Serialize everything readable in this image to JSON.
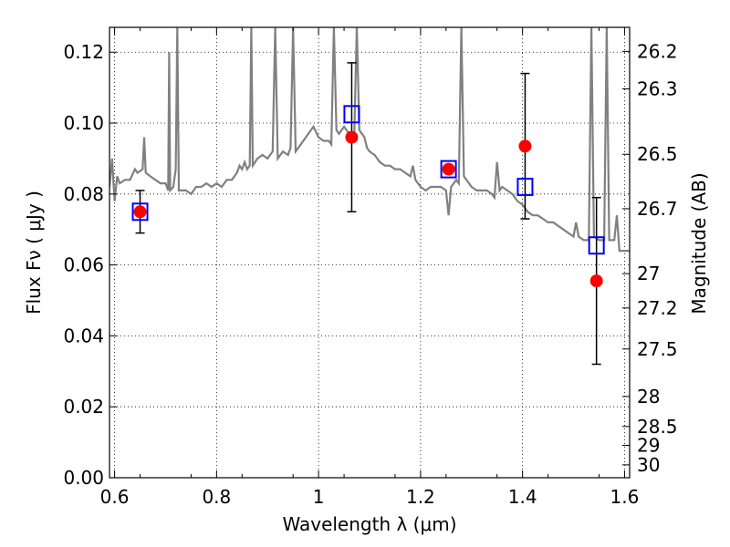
{
  "chart_data": {
    "type": "scatter",
    "xlabel": "Wavelength  λ (μm)",
    "ylabel": "Flux  Fν  ( μJy )",
    "ylabel_right": "Magnitude (AB)",
    "xlim": [
      0.59,
      1.61
    ],
    "ylim": [
      0.0,
      0.127
    ],
    "grid": "dotted",
    "x_ticks": [
      0.6,
      0.8,
      1.0,
      1.2,
      1.4,
      1.6
    ],
    "x_tick_labels": [
      "0.6",
      "0.8",
      "1",
      "1.2",
      "1.4",
      "1.6"
    ],
    "y_ticks": [
      0.0,
      0.02,
      0.04,
      0.06,
      0.08,
      0.1,
      0.12
    ],
    "y_tick_labels": [
      "0.00",
      "0.02",
      "0.04",
      "0.06",
      "0.08",
      "0.10",
      "0.12"
    ],
    "mag_ticks": [
      "26.2",
      "26.3",
      "26.5",
      "26.7",
      "27",
      "27.2",
      "27.5",
      "28",
      "28.5",
      "29",
      "30"
    ],
    "series": [
      {
        "kind": "line",
        "color": "#808080",
        "points": [
          [
            0.59,
            0.082
          ],
          [
            0.595,
            0.09
          ],
          [
            0.6,
            0.078
          ],
          [
            0.605,
            0.085
          ],
          [
            0.61,
            0.083
          ],
          [
            0.62,
            0.084
          ],
          [
            0.63,
            0.084
          ],
          [
            0.64,
            0.087
          ],
          [
            0.645,
            0.086
          ],
          [
            0.655,
            0.087
          ],
          [
            0.658,
            0.096
          ],
          [
            0.661,
            0.086
          ],
          [
            0.67,
            0.085
          ],
          [
            0.68,
            0.084
          ],
          [
            0.69,
            0.083
          ],
          [
            0.7,
            0.083
          ],
          [
            0.705,
            0.081
          ],
          [
            0.707,
            0.12
          ],
          [
            0.709,
            0.081
          ],
          [
            0.715,
            0.082
          ],
          [
            0.72,
            0.087
          ],
          [
            0.723,
            0.127
          ],
          [
            0.726,
            0.081
          ],
          [
            0.74,
            0.081
          ],
          [
            0.75,
            0.08
          ],
          [
            0.76,
            0.082
          ],
          [
            0.77,
            0.082
          ],
          [
            0.78,
            0.083
          ],
          [
            0.79,
            0.082
          ],
          [
            0.8,
            0.083
          ],
          [
            0.81,
            0.082
          ],
          [
            0.82,
            0.084
          ],
          [
            0.83,
            0.084
          ],
          [
            0.84,
            0.086
          ],
          [
            0.845,
            0.088
          ],
          [
            0.85,
            0.087
          ],
          [
            0.855,
            0.089
          ],
          [
            0.86,
            0.087
          ],
          [
            0.865,
            0.088
          ],
          [
            0.868,
            0.127
          ],
          [
            0.871,
            0.088
          ],
          [
            0.88,
            0.09
          ],
          [
            0.89,
            0.091
          ],
          [
            0.9,
            0.09
          ],
          [
            0.91,
            0.092
          ],
          [
            0.915,
            0.127
          ],
          [
            0.92,
            0.09
          ],
          [
            0.93,
            0.092
          ],
          [
            0.94,
            0.091
          ],
          [
            0.945,
            0.093
          ],
          [
            0.95,
            0.127
          ],
          [
            0.955,
            0.092
          ],
          [
            0.96,
            0.093
          ],
          [
            0.97,
            0.095
          ],
          [
            0.98,
            0.097
          ],
          [
            0.99,
            0.099
          ],
          [
            1.0,
            0.096
          ],
          [
            1.01,
            0.095
          ],
          [
            1.02,
            0.095
          ],
          [
            1.025,
            0.094
          ],
          [
            1.03,
            0.127
          ],
          [
            1.035,
            0.098
          ],
          [
            1.04,
            0.097
          ],
          [
            1.05,
            0.099
          ],
          [
            1.06,
            0.097
          ],
          [
            1.07,
            0.096
          ],
          [
            1.075,
            0.127
          ],
          [
            1.08,
            0.098
          ],
          [
            1.09,
            0.096
          ],
          [
            1.095,
            0.093
          ],
          [
            1.1,
            0.092
          ],
          [
            1.11,
            0.091
          ],
          [
            1.12,
            0.089
          ],
          [
            1.13,
            0.088
          ],
          [
            1.14,
            0.088
          ],
          [
            1.15,
            0.087
          ],
          [
            1.16,
            0.087
          ],
          [
            1.17,
            0.086
          ],
          [
            1.18,
            0.085
          ],
          [
            1.185,
            0.088
          ],
          [
            1.19,
            0.084
          ],
          [
            1.2,
            0.082
          ],
          [
            1.21,
            0.081
          ],
          [
            1.22,
            0.082
          ],
          [
            1.23,
            0.082
          ],
          [
            1.24,
            0.082
          ],
          [
            1.25,
            0.081
          ],
          [
            1.255,
            0.074
          ],
          [
            1.26,
            0.082
          ],
          [
            1.27,
            0.084
          ],
          [
            1.275,
            0.083
          ],
          [
            1.28,
            0.127
          ],
          [
            1.285,
            0.085
          ],
          [
            1.29,
            0.084
          ],
          [
            1.3,
            0.082
          ],
          [
            1.31,
            0.081
          ],
          [
            1.32,
            0.081
          ],
          [
            1.33,
            0.081
          ],
          [
            1.34,
            0.08
          ],
          [
            1.345,
            0.079
          ],
          [
            1.35,
            0.089
          ],
          [
            1.355,
            0.081
          ],
          [
            1.36,
            0.082
          ],
          [
            1.37,
            0.081
          ],
          [
            1.38,
            0.08
          ],
          [
            1.39,
            0.078
          ],
          [
            1.4,
            0.077
          ],
          [
            1.41,
            0.075
          ],
          [
            1.42,
            0.074
          ],
          [
            1.43,
            0.074
          ],
          [
            1.44,
            0.073
          ],
          [
            1.45,
            0.072
          ],
          [
            1.46,
            0.072
          ],
          [
            1.47,
            0.071
          ],
          [
            1.48,
            0.07
          ],
          [
            1.49,
            0.069
          ],
          [
            1.5,
            0.068
          ],
          [
            1.505,
            0.072
          ],
          [
            1.51,
            0.068
          ],
          [
            1.52,
            0.067
          ],
          [
            1.53,
            0.067
          ],
          [
            1.535,
            0.127
          ],
          [
            1.54,
            0.068
          ],
          [
            1.55,
            0.067
          ],
          [
            1.56,
            0.067
          ],
          [
            1.565,
            0.127
          ],
          [
            1.57,
            0.067
          ],
          [
            1.58,
            0.067
          ],
          [
            1.585,
            0.074
          ],
          [
            1.59,
            0.064
          ],
          [
            1.6,
            0.064
          ],
          [
            1.61,
            0.064
          ]
        ]
      },
      {
        "kind": "points",
        "marker": "circle",
        "color": "#ff0000",
        "x": [
          0.65,
          1.065,
          1.255,
          1.405,
          1.545
        ],
        "y": [
          0.075,
          0.096,
          0.087,
          0.0935,
          0.0555
        ],
        "yerr": [
          0.006,
          0.021,
          0.0,
          0.0205,
          0.0235
        ]
      },
      {
        "kind": "points",
        "marker": "square-open",
        "color": "#0000ff",
        "x": [
          0.65,
          1.065,
          1.255,
          1.405,
          1.545
        ],
        "y": [
          0.075,
          0.1025,
          0.087,
          0.082,
          0.0655
        ]
      }
    ]
  }
}
